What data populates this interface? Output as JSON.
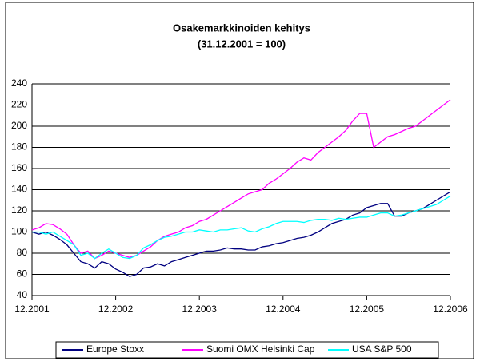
{
  "chart_data": {
    "type": "line",
    "title": "Osakemarkkinoiden kehitys",
    "subtitle": "(31.12.2001 = 100)",
    "categories": [
      "12.2001",
      null,
      null,
      null,
      null,
      null,
      null,
      null,
      null,
      null,
      null,
      null,
      "12.2002",
      null,
      null,
      null,
      null,
      null,
      null,
      null,
      null,
      null,
      null,
      null,
      "12.2003",
      null,
      null,
      null,
      null,
      null,
      null,
      null,
      null,
      null,
      null,
      null,
      "12.2004",
      null,
      null,
      null,
      null,
      null,
      null,
      null,
      null,
      null,
      null,
      null,
      "12.2005",
      null,
      null,
      null,
      null,
      null,
      null,
      null,
      null,
      null,
      null,
      null,
      "12.2006"
    ],
    "series": [
      {
        "name": "Europe Stoxx",
        "color": "#000080",
        "values": [
          100,
          98,
          100,
          97,
          93,
          88,
          80,
          72,
          70,
          66,
          72,
          70,
          65,
          62,
          58,
          60,
          66,
          67,
          70,
          68,
          72,
          74,
          76,
          78,
          80,
          82,
          82,
          83,
          85,
          84,
          84,
          83,
          83,
          86,
          87,
          89,
          90,
          92,
          94,
          95,
          97,
          100,
          104,
          108,
          110,
          112,
          116,
          118,
          123,
          125,
          127,
          127,
          115,
          115,
          118,
          120,
          122,
          126,
          130,
          134,
          138
        ]
      },
      {
        "name": "Suomi OMX Helsinki Cap",
        "color": "#ff00ff",
        "values": [
          102,
          104,
          108,
          107,
          103,
          98,
          88,
          80,
          82,
          75,
          78,
          82,
          80,
          78,
          76,
          78,
          82,
          86,
          92,
          96,
          98,
          100,
          104,
          106,
          110,
          112,
          116,
          120,
          124,
          128,
          132,
          136,
          138,
          140,
          146,
          150,
          155,
          160,
          166,
          170,
          168,
          175,
          180,
          185,
          190,
          196,
          205,
          212,
          212,
          180,
          185,
          190,
          192,
          195,
          198,
          200,
          205,
          210,
          215,
          220,
          225
        ]
      },
      {
        "name": "USA S&P 500",
        "color": "#00ffff",
        "values": [
          100,
          100,
          98,
          100,
          96,
          92,
          88,
          78,
          80,
          75,
          80,
          84,
          80,
          76,
          75,
          78,
          85,
          88,
          92,
          95,
          96,
          98,
          100,
          100,
          102,
          101,
          100,
          102,
          102,
          103,
          104,
          101,
          100,
          103,
          105,
          108,
          110,
          110,
          110,
          109,
          111,
          112,
          112,
          111,
          113,
          112,
          113,
          114,
          114,
          116,
          118,
          118,
          115,
          116,
          118,
          120,
          122,
          124,
          126,
          130,
          134
        ]
      }
    ],
    "ylim": [
      40,
      240
    ],
    "yticks": [
      40,
      60,
      80,
      100,
      120,
      140,
      160,
      180,
      200,
      220,
      240
    ],
    "grid": true,
    "legend": "bottom"
  }
}
